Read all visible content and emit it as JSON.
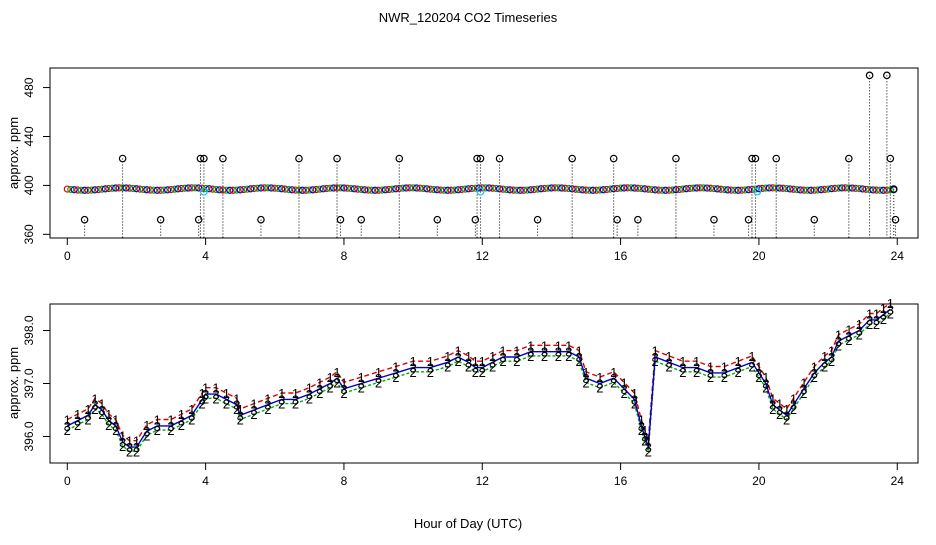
{
  "chart_data": {
    "title": "NWR_120204  CO2 Timeseries",
    "xlabel": "Hour of Day (UTC)",
    "colors": {
      "ch1": "#e00000",
      "ch2": "#00b000",
      "ch3": "#0000d0",
      "outlier": "#000000",
      "cal": "#00c8ff"
    },
    "panels": [
      {
        "type": "scatter",
        "ylabel": "approx. ppm",
        "xlim": [
          -0.5,
          24.6
        ],
        "ylim": [
          357,
          496
        ],
        "xticks": [
          "0",
          "4",
          "8",
          "12",
          "16",
          "20",
          "24"
        ],
        "xtick_values": [
          0,
          4,
          8,
          12,
          16,
          20,
          24
        ],
        "yticks": [
          "360",
          "400",
          "440",
          "480"
        ],
        "ytick_values": [
          360,
          400,
          440,
          480
        ],
        "baseline_ppm": 397,
        "spikes": [
          {
            "x": 0.5,
            "y": 372
          },
          {
            "x": 1.6,
            "y": 422
          },
          {
            "x": 2.7,
            "y": 372
          },
          {
            "x": 3.8,
            "y": 372
          },
          {
            "x": 3.85,
            "y": 422
          },
          {
            "x": 3.95,
            "y": 422
          },
          {
            "x": 4.5,
            "y": 422
          },
          {
            "x": 5.6,
            "y": 372
          },
          {
            "x": 6.7,
            "y": 422
          },
          {
            "x": 7.8,
            "y": 422
          },
          {
            "x": 7.9,
            "y": 372
          },
          {
            "x": 8.5,
            "y": 372
          },
          {
            "x": 9.6,
            "y": 422
          },
          {
            "x": 10.7,
            "y": 372
          },
          {
            "x": 11.8,
            "y": 372
          },
          {
            "x": 11.85,
            "y": 422
          },
          {
            "x": 11.95,
            "y": 422
          },
          {
            "x": 12.5,
            "y": 422
          },
          {
            "x": 13.6,
            "y": 372
          },
          {
            "x": 14.6,
            "y": 422
          },
          {
            "x": 15.8,
            "y": 422
          },
          {
            "x": 15.9,
            "y": 372
          },
          {
            "x": 16.5,
            "y": 372
          },
          {
            "x": 17.6,
            "y": 422
          },
          {
            "x": 18.7,
            "y": 372
          },
          {
            "x": 19.7,
            "y": 372
          },
          {
            "x": 19.8,
            "y": 422
          },
          {
            "x": 19.9,
            "y": 422
          },
          {
            "x": 20.5,
            "y": 422
          },
          {
            "x": 21.6,
            "y": 372
          },
          {
            "x": 22.6,
            "y": 422
          },
          {
            "x": 23.2,
            "y": 490
          },
          {
            "x": 23.7,
            "y": 490
          },
          {
            "x": 23.8,
            "y": 422
          },
          {
            "x": 23.9,
            "y": 397
          },
          {
            "x": 23.95,
            "y": 372
          }
        ],
        "cal_points": [
          {
            "x": 3.95,
            "y": 395
          },
          {
            "x": 11.95,
            "y": 395
          },
          {
            "x": 19.95,
            "y": 395
          }
        ]
      },
      {
        "type": "line",
        "ylabel": "approx. ppm",
        "xlim": [
          -0.5,
          24.6
        ],
        "ylim": [
          395.5,
          398.5
        ],
        "xticks": [
          "0",
          "4",
          "8",
          "12",
          "16",
          "20",
          "24"
        ],
        "xtick_values": [
          0,
          4,
          8,
          12,
          16,
          20,
          24
        ],
        "yticks": [
          "396.0",
          "397.0",
          "398.0"
        ],
        "ytick_values": [
          396,
          397,
          398
        ],
        "marker_labels": [
          "1",
          "2",
          "3"
        ],
        "series_hours": [
          0,
          0.3,
          0.6,
          0.8,
          1.0,
          1.2,
          1.4,
          1.6,
          1.8,
          2.0,
          2.3,
          2.6,
          3.0,
          3.3,
          3.6,
          3.9,
          4.0,
          4.3,
          4.6,
          4.9,
          5.0,
          5.4,
          5.8,
          6.2,
          6.6,
          7.0,
          7.3,
          7.6,
          7.8,
          8.0,
          8.5,
          9.0,
          9.5,
          10.0,
          10.5,
          11.0,
          11.3,
          11.6,
          11.8,
          12.0,
          12.3,
          12.6,
          13.0,
          13.4,
          13.8,
          14.2,
          14.5,
          14.8,
          15.0,
          15.4,
          15.8,
          16.1,
          16.4,
          16.6,
          16.7,
          16.8,
          17.0,
          17.4,
          17.8,
          18.2,
          18.6,
          19.0,
          19.4,
          19.8,
          20.0,
          20.2,
          20.4,
          20.6,
          20.8,
          21.0,
          21.3,
          21.6,
          21.9,
          22.1,
          22.3,
          22.6,
          22.9,
          23.2,
          23.4,
          23.6,
          23.8
        ],
        "series_ppm": [
          396.2,
          396.3,
          396.4,
          396.6,
          396.5,
          396.3,
          396.2,
          395.9,
          395.8,
          395.8,
          396.1,
          396.2,
          396.2,
          396.3,
          396.4,
          396.7,
          396.8,
          396.8,
          396.7,
          396.6,
          396.4,
          396.5,
          396.6,
          396.7,
          396.7,
          396.8,
          396.9,
          397.0,
          397.1,
          396.9,
          397.0,
          397.1,
          397.2,
          397.3,
          397.3,
          397.4,
          397.5,
          397.4,
          397.3,
          397.3,
          397.4,
          397.5,
          397.5,
          397.6,
          397.6,
          397.6,
          397.6,
          397.5,
          397.1,
          397.0,
          397.1,
          396.9,
          396.7,
          396.2,
          396.0,
          395.8,
          397.5,
          397.4,
          397.3,
          397.3,
          397.2,
          397.2,
          397.3,
          397.4,
          397.2,
          397.0,
          396.6,
          396.5,
          396.4,
          396.6,
          396.9,
          397.2,
          397.4,
          397.5,
          397.8,
          397.9,
          398.0,
          398.2,
          398.2,
          398.3,
          398.4
        ]
      }
    ]
  }
}
